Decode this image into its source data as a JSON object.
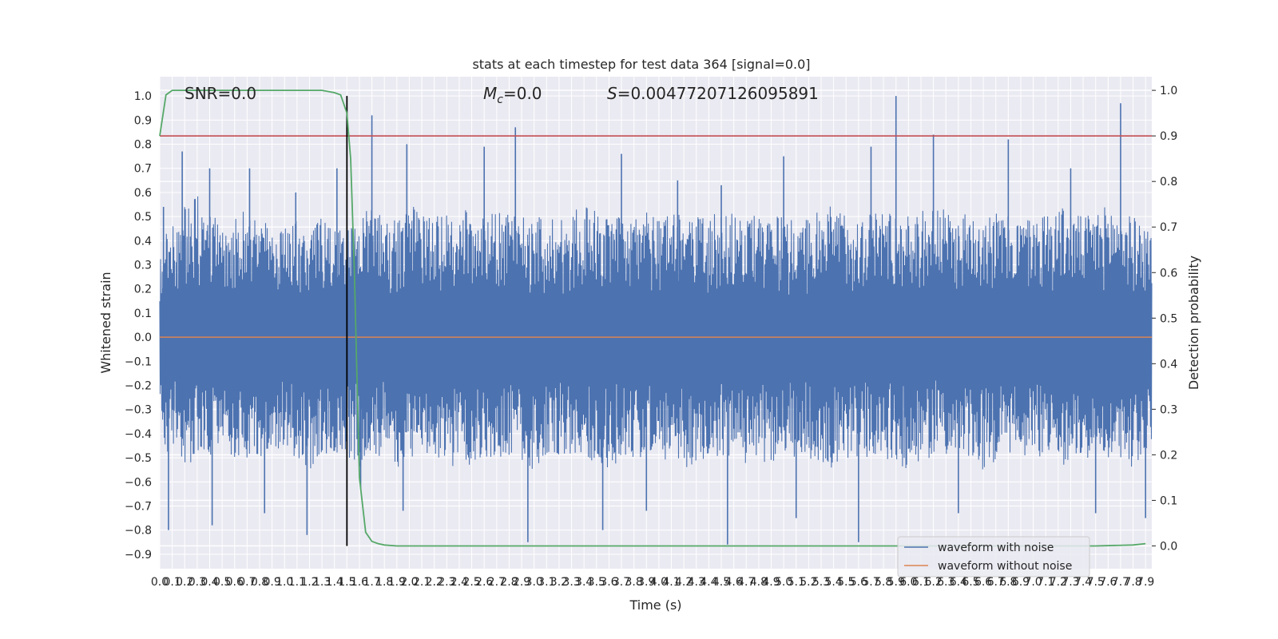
{
  "chart_data": {
    "type": "line",
    "title": "stats at each timestep for test data 364 [signal=0.0]",
    "xlabel": "Time (s)",
    "ylabel_left": "Whitened strain",
    "ylabel_right": "Detection probability",
    "xlim": [
      0.0,
      7.95
    ],
    "ylim_left": [
      -0.96,
      1.08
    ],
    "ylim_right": [
      -0.05,
      1.03
    ],
    "x_ticks": [
      "0.0",
      "0.1",
      "0.2",
      "0.3",
      "0.4",
      "0.5",
      "0.6",
      "0.7",
      "0.8",
      "0.9",
      "1.0",
      "1.1",
      "1.2",
      "1.3",
      "1.4",
      "1.5",
      "1.6",
      "1.7",
      "1.8",
      "1.9",
      "2.0",
      "2.1",
      "2.2",
      "2.3",
      "2.4",
      "2.5",
      "2.6",
      "2.7",
      "2.8",
      "2.9",
      "3.0",
      "3.1",
      "3.2",
      "3.3",
      "3.4",
      "3.5",
      "3.6",
      "3.7",
      "3.8",
      "3.9",
      "4.0",
      "4.1",
      "4.2",
      "4.3",
      "4.4",
      "4.5",
      "4.6",
      "4.7",
      "4.8",
      "4.9",
      "5.0",
      "5.1",
      "5.2",
      "5.3",
      "5.4",
      "5.5",
      "5.6",
      "5.7",
      "5.8",
      "5.9",
      "6.0",
      "6.1",
      "6.2",
      "6.3",
      "6.4",
      "6.5",
      "6.6",
      "6.7",
      "6.8",
      "6.9",
      "7.0",
      "7.1",
      "7.2",
      "7.3",
      "7.4",
      "7.5",
      "7.6",
      "7.7",
      "7.8",
      "7.9"
    ],
    "y_ticks_left": [
      "-0.9",
      "-0.8",
      "-0.7",
      "-0.6",
      "-0.5",
      "-0.4",
      "-0.3",
      "-0.2",
      "-0.1",
      "0.0",
      "0.1",
      "0.2",
      "0.3",
      "0.4",
      "0.5",
      "0.6",
      "0.7",
      "0.8",
      "0.9",
      "1.0"
    ],
    "y_ticks_right": [
      "0.0",
      "0.1",
      "0.2",
      "0.3",
      "0.4",
      "0.5",
      "0.6",
      "0.7",
      "0.8",
      "0.9",
      "1.0"
    ],
    "annotations": {
      "snr": "SNR=0.0",
      "mc_symbol": "M",
      "mc_sub": "c",
      "mc_value": "=0.0",
      "s_symbol": "S",
      "s_value": "=0.00477207126095891"
    },
    "legend": {
      "placement": "lower-right",
      "entries": [
        "waveform with noise",
        "waveform without noise"
      ]
    },
    "colors": {
      "noise": "#4c72b0",
      "clean": "#dd8452",
      "probability": "#55a868",
      "threshold": "#c44e52",
      "marker": "#000000",
      "background": "#eaeaf2",
      "grid": "#ffffff"
    },
    "series": [
      {
        "name": "waveform with noise",
        "axis": "left",
        "description_value": "noise envelope",
        "envelope": {
          "x": [
            0.0,
            0.1,
            0.2,
            0.3,
            0.4,
            0.5,
            0.6,
            0.7,
            0.8,
            0.9,
            1.0,
            1.1,
            1.2,
            1.3,
            1.4,
            1.5,
            1.6,
            1.7,
            1.8,
            1.9,
            2.0,
            2.2,
            2.4,
            2.6,
            2.8,
            3.0,
            3.2,
            3.4,
            3.6,
            3.8,
            4.0,
            4.2,
            4.4,
            4.6,
            4.8,
            5.0,
            5.2,
            5.4,
            5.6,
            5.8,
            6.0,
            6.2,
            6.4,
            6.6,
            6.8,
            7.0,
            7.2,
            7.4,
            7.6,
            7.8,
            7.95
          ],
          "upper": [
            0.35,
            0.5,
            0.55,
            0.6,
            0.55,
            0.45,
            0.5,
            0.55,
            0.45,
            0.5,
            0.45,
            0.5,
            0.45,
            0.5,
            0.45,
            0.45,
            0.5,
            0.55,
            0.5,
            0.5,
            0.55,
            0.5,
            0.55,
            0.5,
            0.55,
            0.5,
            0.5,
            0.55,
            0.5,
            0.5,
            0.55,
            0.5,
            0.5,
            0.55,
            0.5,
            0.5,
            0.5,
            0.55,
            0.5,
            0.55,
            0.5,
            0.55,
            0.5,
            0.55,
            0.5,
            0.5,
            0.55,
            0.5,
            0.55,
            0.5,
            0.45
          ],
          "lower": [
            -0.45,
            -0.5,
            -0.55,
            -0.5,
            -0.5,
            -0.45,
            -0.5,
            -0.5,
            -0.5,
            -0.45,
            -0.5,
            -0.5,
            -0.55,
            -0.5,
            -0.5,
            -0.5,
            -0.55,
            -0.5,
            -0.5,
            -0.55,
            -0.5,
            -0.5,
            -0.55,
            -0.5,
            -0.5,
            -0.55,
            -0.5,
            -0.5,
            -0.55,
            -0.5,
            -0.5,
            -0.55,
            -0.5,
            -0.5,
            -0.55,
            -0.5,
            -0.5,
            -0.55,
            -0.5,
            -0.5,
            -0.55,
            -0.5,
            -0.5,
            -0.55,
            -0.5,
            -0.5,
            -0.55,
            -0.5,
            -0.5,
            -0.55,
            -0.45
          ]
        },
        "peaks": [
          {
            "x": 0.03,
            "y": 0.54
          },
          {
            "x": 0.18,
            "y": 0.77
          },
          {
            "x": 0.4,
            "y": 0.7
          },
          {
            "x": 0.72,
            "y": 0.7
          },
          {
            "x": 1.09,
            "y": 0.6
          },
          {
            "x": 1.42,
            "y": 0.7
          },
          {
            "x": 1.7,
            "y": 0.92
          },
          {
            "x": 1.98,
            "y": 0.8
          },
          {
            "x": 2.6,
            "y": 0.79
          },
          {
            "x": 2.85,
            "y": 0.87
          },
          {
            "x": 3.7,
            "y": 0.76
          },
          {
            "x": 4.15,
            "y": 0.65
          },
          {
            "x": 4.5,
            "y": 0.63
          },
          {
            "x": 5.0,
            "y": 0.75
          },
          {
            "x": 5.7,
            "y": 0.79
          },
          {
            "x": 5.9,
            "y": 1.0
          },
          {
            "x": 6.2,
            "y": 0.84
          },
          {
            "x": 6.8,
            "y": 0.82
          },
          {
            "x": 7.3,
            "y": 0.7
          },
          {
            "x": 7.7,
            "y": 0.97
          }
        ],
        "troughs": [
          {
            "x": 0.07,
            "y": -0.8
          },
          {
            "x": 0.42,
            "y": -0.78
          },
          {
            "x": 0.84,
            "y": -0.73
          },
          {
            "x": 1.18,
            "y": -0.82
          },
          {
            "x": 1.61,
            "y": -0.63
          },
          {
            "x": 1.95,
            "y": -0.72
          },
          {
            "x": 2.95,
            "y": -0.85
          },
          {
            "x": 3.55,
            "y": -0.8
          },
          {
            "x": 3.9,
            "y": -0.72
          },
          {
            "x": 4.55,
            "y": -0.86
          },
          {
            "x": 5.1,
            "y": -0.75
          },
          {
            "x": 5.6,
            "y": -0.85
          },
          {
            "x": 6.4,
            "y": -0.73
          },
          {
            "x": 7.5,
            "y": -0.73
          },
          {
            "x": 7.9,
            "y": -0.75
          }
        ]
      },
      {
        "name": "waveform without noise",
        "axis": "left",
        "x": [
          0.0,
          7.95
        ],
        "y": [
          0.0,
          0.0
        ]
      },
      {
        "name": "",
        "axis": "right",
        "x": [
          0.0,
          0.05,
          0.1,
          0.2,
          0.5,
          1.0,
          1.3,
          1.4,
          1.45,
          1.5,
          1.53,
          1.56,
          1.6,
          1.65,
          1.7,
          1.75,
          1.8,
          1.9,
          2.2,
          4.0,
          6.0,
          7.5,
          7.8,
          7.9
        ],
        "y": [
          0.9,
          0.99,
          1.0,
          1.0,
          1.0,
          1.0,
          1.0,
          0.995,
          0.99,
          0.95,
          0.85,
          0.6,
          0.15,
          0.03,
          0.01,
          0.005,
          0.002,
          0.0,
          0.0,
          0.0,
          0.0,
          0.0,
          0.002,
          0.005
        ]
      }
    ],
    "threshold_right": 0.9,
    "marker_x": 1.5
  }
}
